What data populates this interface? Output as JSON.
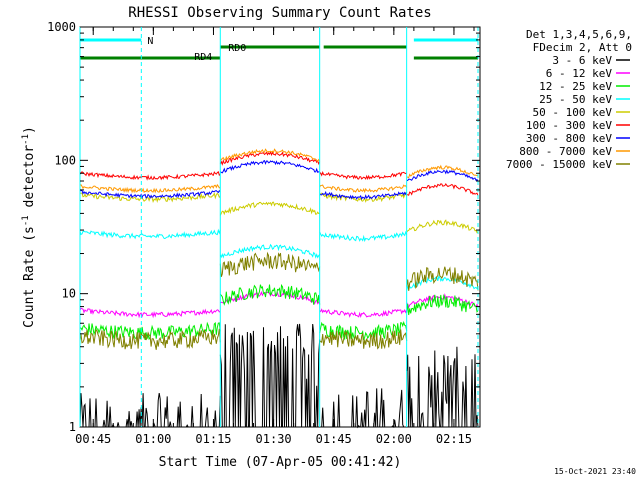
{
  "chart_data": {
    "type": "line",
    "title": "RHESSI Observing Summary Count Rates",
    "xlabel": "Start Time (07-Apr-05 00:41:42)",
    "ylabel_main": "Count Rate (s",
    "ylabel_sup1": "-1",
    "ylabel_mid": " detector",
    "ylabel_sup2": "-1",
    "ylabel_end": ")",
    "yscale": "log",
    "ylim": [
      1,
      1000
    ],
    "xlim_minutes": [
      41.7,
      141.5
    ],
    "x_unit": "minutes after 00:00 UT",
    "x_ticks": [
      {
        "min": 45,
        "label": "00:45"
      },
      {
        "min": 60,
        "label": "01:00"
      },
      {
        "min": 75,
        "label": "01:15"
      },
      {
        "min": 90,
        "label": "01:30"
      },
      {
        "min": 105,
        "label": "01:45"
      },
      {
        "min": 120,
        "label": "02:00"
      },
      {
        "min": 135,
        "label": "02:15"
      }
    ],
    "y_ticks": [
      {
        "value": 1,
        "label": "1"
      },
      {
        "value": 10,
        "label": "10"
      },
      {
        "value": 100,
        "label": "100"
      },
      {
        "value": 1000,
        "label": "1000"
      }
    ],
    "legend": {
      "position": "right",
      "header": [
        "Det 1,3,4,5,6,9,",
        "FDecim 2, Att 0"
      ]
    },
    "intervals": [
      {
        "label": "N",
        "color": "#00ffff",
        "start": 41.7,
        "end": 57.0
      },
      {
        "label": "",
        "color": "#00ffff",
        "start": 125.0,
        "end": 141.0
      },
      {
        "label": "RD4",
        "color": "#008000",
        "start": 41.7,
        "end": 76.7
      },
      {
        "label": "RD0",
        "color": "#008000",
        "start": 76.7,
        "end": 101.5
      },
      {
        "label": "",
        "color": "#008000",
        "start": 102.5,
        "end": 123.2
      },
      {
        "label": "",
        "color": "#008000",
        "start": 125.0,
        "end": 141.0
      }
    ],
    "vlines_solid": [
      41.7,
      76.7,
      101.5,
      123.2
    ],
    "vlines_dashed": [
      57.0,
      141.0
    ],
    "segments": [
      [
        41.7,
        76.7
      ],
      [
        76.7,
        101.5
      ],
      [
        101.5,
        123.2
      ],
      [
        123.2,
        141.0
      ]
    ],
    "series": [
      {
        "name": "3 - 6 keV",
        "color": "#000000",
        "levels": [
          0.9,
          3.0,
          1.0,
          2.0
        ],
        "noise": 0.6
      },
      {
        "name": "6 - 12 keV",
        "color": "#ff00ff",
        "levels": [
          7.5,
          8.5,
          7.5,
          8.0
        ],
        "noise": 0.04
      },
      {
        "name": "12 - 25 keV",
        "color": "#00ee00",
        "levels": [
          5.5,
          9.0,
          5.5,
          7.5
        ],
        "noise": 0.12
      },
      {
        "name": "25 - 50 keV",
        "color": "#00ffff",
        "levels": [
          29,
          19,
          28,
          11
        ],
        "noise": 0.04
      },
      {
        "name": "50 - 100 keV",
        "color": "#cccc00",
        "levels": [
          55,
          40,
          55,
          29
        ],
        "noise": 0.04
      },
      {
        "name": "100 - 300 keV",
        "color": "#ff0000",
        "levels": [
          80,
          95,
          80,
          55
        ],
        "noise": 0.03
      },
      {
        "name": "300 - 800 keV",
        "color": "#0000ff",
        "levels": [
          58,
          82,
          57,
          70
        ],
        "noise": 0.03
      },
      {
        "name": "800 - 7000 keV",
        "color": "#ff9900",
        "levels": [
          64,
          100,
          64,
          75
        ],
        "noise": 0.03
      },
      {
        "name": "7000 - 15000 keV",
        "color": "#808000",
        "levels": [
          4.8,
          15,
          4.8,
          12
        ],
        "noise": 0.15
      }
    ]
  },
  "footer": {
    "date_stamp": "15-Oct-2021 23:40"
  }
}
